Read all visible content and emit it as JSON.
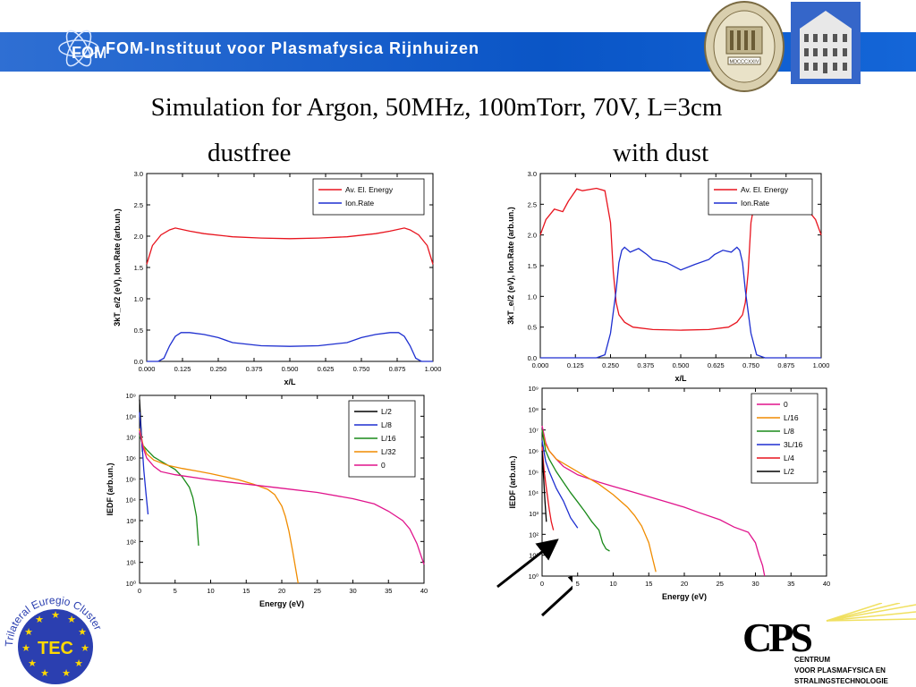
{
  "header": {
    "banner_text": "FOM-Instituut voor Plasmafysica Rijnhuizen",
    "logo_text": "FOM"
  },
  "slide": {
    "title": "Simulation for Argon, 50MHz, 100mTorr, 70V, L=3cm",
    "left_heading": "dustfree",
    "right_heading": "with dust"
  },
  "logos": {
    "tec_text": "TEC",
    "tec_ring_text": "Trilateral Euregio Cluster",
    "cps_letters": "CPS",
    "cps_line1": "CENTRUM",
    "cps_line2": "VOOR PLASMAFYSICA EN",
    "cps_line3": "STRALINGSTECHNOLOGIE",
    "seal_text": "MDCCCXXIV"
  },
  "colors": {
    "banner": "#0a55c6",
    "red": "#e8141e",
    "blue": "#1e2fd0",
    "black": "#000000",
    "green": "#1a8a1a",
    "orange": "#f08c00",
    "magenta": "#e0148c"
  },
  "chart_data": [
    {
      "type": "line",
      "id": "dustfree-profile",
      "xlabel": "x/L",
      "ylabel": "3kT_e/2 (eV), Ion.Rate (arb.un.)",
      "xlim": [
        0,
        1
      ],
      "ylim": [
        0,
        3
      ],
      "xticks": [
        "0.000",
        "0.125",
        "0.250",
        "0.375",
        "0.500",
        "0.625",
        "0.750",
        "0.875",
        "1.000"
      ],
      "yticks": [
        "0.0",
        "0.5",
        "1.0",
        "1.5",
        "2.0",
        "2.5",
        "3.0"
      ],
      "legend": "top-right",
      "series": [
        {
          "name": "Av. El. Energy",
          "color": "red",
          "x": [
            0,
            0.02,
            0.05,
            0.08,
            0.1,
            0.15,
            0.2,
            0.3,
            0.4,
            0.5,
            0.6,
            0.7,
            0.8,
            0.85,
            0.9,
            0.92,
            0.95,
            0.98,
            1.0
          ],
          "y": [
            1.55,
            1.85,
            2.02,
            2.1,
            2.13,
            2.08,
            2.04,
            1.99,
            1.97,
            1.96,
            1.97,
            1.99,
            2.04,
            2.08,
            2.13,
            2.1,
            2.02,
            1.85,
            1.55
          ]
        },
        {
          "name": "Ion.Rate",
          "color": "blue",
          "x": [
            0,
            0.04,
            0.06,
            0.08,
            0.1,
            0.12,
            0.15,
            0.2,
            0.25,
            0.3,
            0.4,
            0.5,
            0.6,
            0.7,
            0.75,
            0.8,
            0.85,
            0.88,
            0.9,
            0.92,
            0.94,
            0.96,
            1.0
          ],
          "y": [
            0,
            0,
            0.05,
            0.25,
            0.4,
            0.46,
            0.46,
            0.43,
            0.38,
            0.3,
            0.25,
            0.24,
            0.25,
            0.3,
            0.38,
            0.43,
            0.46,
            0.46,
            0.4,
            0.25,
            0.05,
            0,
            0
          ]
        }
      ]
    },
    {
      "type": "line",
      "id": "withdust-profile",
      "xlabel": "x/L",
      "ylabel": "3kT_e/2 (eV), Ion.Rate (arb.un.)",
      "xlim": [
        0,
        1
      ],
      "ylim": [
        0,
        3
      ],
      "xticks": [
        "0.000",
        "0.125",
        "0.250",
        "0.375",
        "0.500",
        "0.625",
        "0.750",
        "0.875",
        "1.000"
      ],
      "yticks": [
        "0.0",
        "0.5",
        "1.0",
        "1.5",
        "2.0",
        "2.5",
        "3.0"
      ],
      "legend": "top-right",
      "series": [
        {
          "name": "Av. El. Energy",
          "color": "red",
          "x": [
            0,
            0.02,
            0.05,
            0.08,
            0.1,
            0.13,
            0.15,
            0.2,
            0.23,
            0.25,
            0.26,
            0.27,
            0.28,
            0.3,
            0.33,
            0.4,
            0.5,
            0.6,
            0.67,
            0.7,
            0.72,
            0.73,
            0.74,
            0.75,
            0.77,
            0.8,
            0.85,
            0.87,
            0.9,
            0.92,
            0.95,
            0.98,
            1.0
          ],
          "y": [
            2.0,
            2.25,
            2.42,
            2.38,
            2.55,
            2.75,
            2.72,
            2.76,
            2.72,
            2.2,
            1.4,
            0.9,
            0.7,
            0.58,
            0.5,
            0.46,
            0.45,
            0.46,
            0.5,
            0.58,
            0.7,
            0.9,
            1.4,
            2.2,
            2.72,
            2.76,
            2.72,
            2.75,
            2.55,
            2.38,
            2.42,
            2.25,
            2.0
          ]
        },
        {
          "name": "Ion.Rate",
          "color": "blue",
          "x": [
            0,
            0.2,
            0.23,
            0.25,
            0.27,
            0.28,
            0.29,
            0.3,
            0.32,
            0.35,
            0.38,
            0.4,
            0.45,
            0.5,
            0.55,
            0.6,
            0.62,
            0.65,
            0.68,
            0.7,
            0.71,
            0.72,
            0.73,
            0.75,
            0.77,
            0.8,
            1.0
          ],
          "y": [
            0,
            0,
            0.05,
            0.4,
            1.1,
            1.55,
            1.75,
            1.8,
            1.72,
            1.78,
            1.68,
            1.6,
            1.55,
            1.43,
            1.52,
            1.6,
            1.68,
            1.75,
            1.72,
            1.8,
            1.75,
            1.55,
            1.1,
            0.4,
            0.05,
            0,
            0
          ]
        }
      ]
    },
    {
      "type": "line",
      "id": "dustfree-iedf",
      "xlabel": "Energy (eV)",
      "ylabel": "IEDF (arb.un.)",
      "xlim": [
        0,
        40
      ],
      "ylim_log10": [
        0,
        9
      ],
      "xticks": [
        "0",
        "5",
        "10",
        "15",
        "20",
        "25",
        "30",
        "35",
        "40"
      ],
      "yticks": [
        "10⁰",
        "10¹",
        "10²",
        "10³",
        "10⁴",
        "10⁵",
        "10⁶",
        "10⁷",
        "10⁸",
        "10⁹"
      ],
      "legend": "top-right",
      "series": [
        {
          "name": "L/2",
          "color": "black",
          "x": [
            0,
            0.2,
            0.4
          ],
          "y": [
            8.8,
            7.5,
            6.3
          ]
        },
        {
          "name": "L/8",
          "color": "blue",
          "x": [
            0,
            0.3,
            0.6,
            0.9,
            1.2
          ],
          "y": [
            8.2,
            6.9,
            5.4,
            4.3,
            3.3
          ]
        },
        {
          "name": "L/16",
          "color": "green",
          "x": [
            0,
            0.5,
            1,
            2,
            3,
            4,
            5,
            6,
            7,
            7.5,
            8,
            8.3
          ],
          "y": [
            7.1,
            6.6,
            6.4,
            6.05,
            5.85,
            5.65,
            5.45,
            5.1,
            4.6,
            4.1,
            3.2,
            1.8
          ]
        },
        {
          "name": "L/32",
          "color": "orange",
          "x": [
            0,
            0.5,
            1,
            2,
            4,
            6,
            8,
            10,
            12,
            14,
            16,
            18,
            19,
            20,
            20.5,
            21,
            21.5,
            22,
            22.3
          ],
          "y": [
            7.4,
            6.6,
            6.2,
            5.9,
            5.65,
            5.5,
            5.38,
            5.25,
            5.1,
            4.95,
            4.75,
            4.5,
            4.25,
            3.7,
            3.2,
            2.5,
            1.6,
            0.6,
            0
          ]
        },
        {
          "name": "0",
          "color": "magenta",
          "x": [
            0,
            0.5,
            1,
            2,
            3,
            5,
            10,
            15,
            20,
            25,
            30,
            33,
            35,
            37,
            38,
            39,
            39.5,
            40
          ],
          "y": [
            7.3,
            6.5,
            6.0,
            5.6,
            5.35,
            5.2,
            4.95,
            4.75,
            4.55,
            4.35,
            4.05,
            3.8,
            3.45,
            3.0,
            2.6,
            1.9,
            1.4,
            0.9
          ]
        }
      ]
    },
    {
      "type": "line",
      "id": "withdust-iedf",
      "xlabel": "Energy (eV)",
      "ylabel": "IEDF (arb.un.)",
      "xlim": [
        0,
        40
      ],
      "ylim_log10": [
        0,
        9
      ],
      "xticks": [
        "0",
        "5",
        "10",
        "15",
        "20",
        "25",
        "30",
        "35",
        "40"
      ],
      "yticks": [
        "10⁰",
        "10¹",
        "10²",
        "10³",
        "10⁴",
        "10⁵",
        "10⁶",
        "10⁷",
        "10⁸",
        "10⁹"
      ],
      "legend": "top-right",
      "series": [
        {
          "name": "0",
          "color": "magenta",
          "x": [
            0,
            0.5,
            1,
            2,
            3,
            5,
            8,
            10,
            12,
            15,
            18,
            20,
            22,
            25,
            27,
            29,
            30,
            30.5,
            31,
            31.3
          ],
          "y": [
            7.2,
            6.4,
            6.0,
            5.6,
            5.25,
            4.85,
            4.5,
            4.3,
            4.1,
            3.8,
            3.5,
            3.3,
            3.05,
            2.7,
            2.35,
            2.1,
            1.6,
            1.0,
            0.5,
            0
          ]
        },
        {
          "name": "L/16",
          "color": "orange",
          "x": [
            0,
            0.5,
            1,
            2,
            4,
            6,
            8,
            10,
            12,
            13,
            14,
            15,
            15.5,
            16
          ],
          "y": [
            7.0,
            6.3,
            6.0,
            5.6,
            5.2,
            4.8,
            4.4,
            3.9,
            3.3,
            2.9,
            2.4,
            1.6,
            0.9,
            0.2
          ]
        },
        {
          "name": "L/8",
          "color": "green",
          "x": [
            0,
            0.5,
            1,
            2,
            3,
            4,
            5,
            6,
            7,
            8,
            8.5,
            9,
            9.5
          ],
          "y": [
            7.0,
            6.0,
            5.6,
            5.0,
            4.5,
            4.0,
            3.55,
            3.1,
            2.6,
            2.2,
            1.6,
            1.3,
            1.2
          ]
        },
        {
          "name": "3L/16",
          "color": "blue",
          "x": [
            0,
            0.5,
            1,
            2,
            3,
            4,
            5
          ],
          "y": [
            6.5,
            5.5,
            5.0,
            4.2,
            3.6,
            2.8,
            2.3
          ]
        },
        {
          "name": "L/4",
          "color": "red",
          "x": [
            0,
            0.3,
            0.6,
            1,
            1.3,
            1.6
          ],
          "y": [
            6.2,
            5.0,
            4.2,
            3.2,
            2.6,
            2.2
          ]
        },
        {
          "name": "L/2",
          "color": "black",
          "x": [
            0,
            0.2,
            0.4,
            0.6
          ],
          "y": [
            6.0,
            4.8,
            3.6,
            2.6
          ]
        }
      ]
    }
  ]
}
